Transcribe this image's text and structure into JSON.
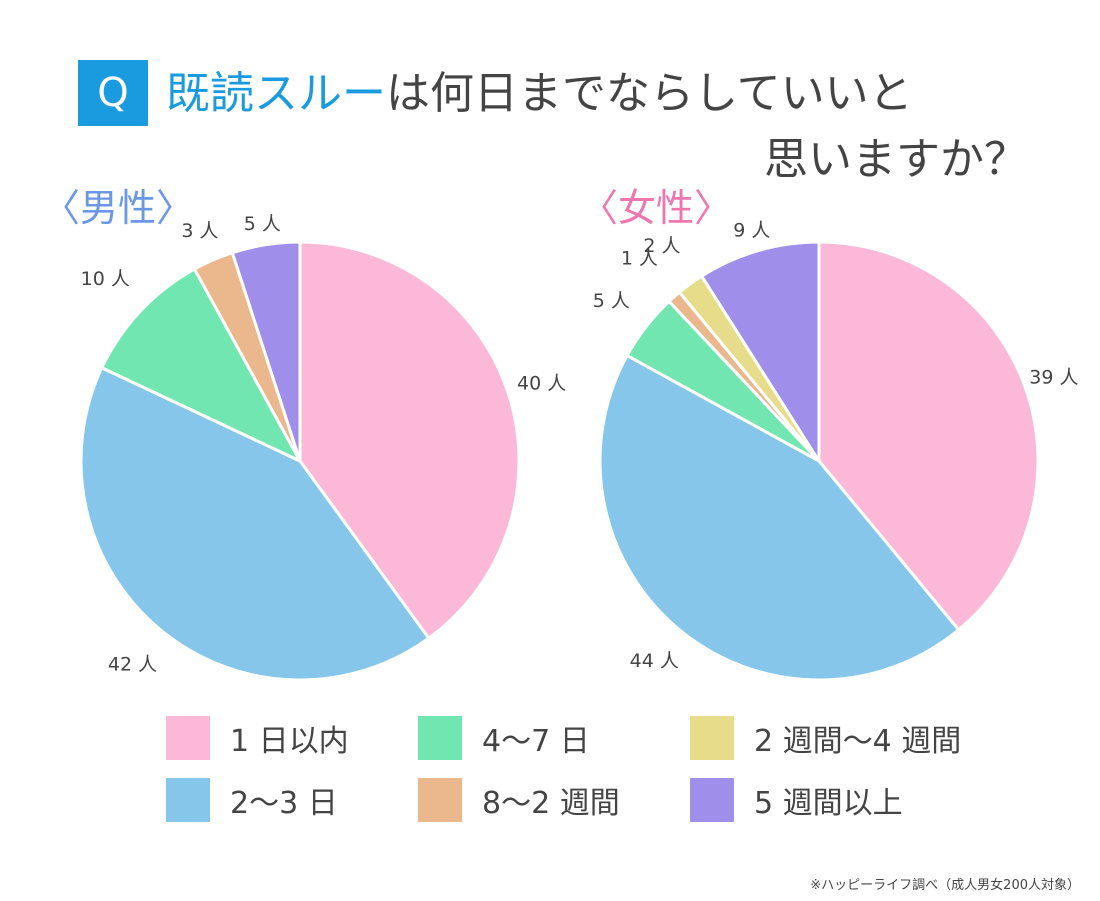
{
  "title": {
    "badge": "Q",
    "highlight": "既読スルー",
    "line1_rest": "は何日までならしていいと",
    "line2": "思いますか？"
  },
  "footnote": "※ハッピーライフ調べ（成人男女200人対象）",
  "legend": [
    {
      "label": "1 日以内",
      "color": "#fbb8d7"
    },
    {
      "label": "4〜7 日",
      "color": "#72e6b1"
    },
    {
      "label": "2 週間〜4 週間",
      "color": "#e6dc8a"
    },
    {
      "label": "2〜3 日",
      "color": "#85c6ea"
    },
    {
      "label": "8〜2 週間",
      "color": "#ebb78d"
    },
    {
      "label": "5 週間以上",
      "color": "#9f8fea"
    }
  ],
  "chart_data": [
    {
      "type": "pie",
      "title": "〈男性〉",
      "categories": [
        "1 日以内",
        "2〜3 日",
        "4〜7 日",
        "8〜2 週間",
        "5 週間以上"
      ],
      "values": [
        40,
        42,
        10,
        3,
        5
      ],
      "labels": [
        "40 人",
        "42 人",
        "10 人",
        "3 人",
        "5 人"
      ],
      "colors": [
        "#fbb8d7",
        "#85c6ea",
        "#72e6b1",
        "#ebb78d",
        "#9f8fea"
      ]
    },
    {
      "type": "pie",
      "title": "〈女性〉",
      "categories": [
        "1 日以内",
        "2〜3 日",
        "4〜7 日",
        "8〜2 週間",
        "2 週間〜4 週間",
        "5 週間以上"
      ],
      "values": [
        39,
        44,
        5,
        1,
        2,
        9
      ],
      "labels": [
        "39 人",
        "44 人",
        "5 人",
        "1 人",
        "2 人",
        "9 人"
      ],
      "colors": [
        "#fbb8d7",
        "#85c6ea",
        "#72e6b1",
        "#ebb78d",
        "#e6dc8a",
        "#9f8fea"
      ]
    }
  ]
}
